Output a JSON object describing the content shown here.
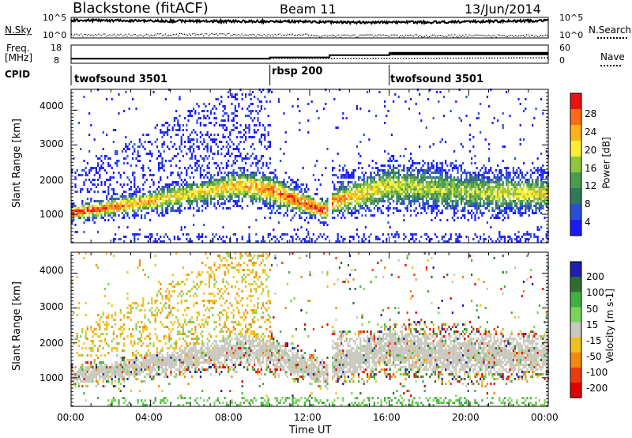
{
  "header": {
    "station": "Blackstone (fitACF)",
    "beam": "Beam 11",
    "date": "13/Jun/2014"
  },
  "panel_labels": {
    "nsky": "N.Sky",
    "nsearch": "N.Search",
    "freq_line1": "Freq.",
    "freq_line2": "[MHz]",
    "nave": "Nave",
    "cpid": "CPID"
  },
  "chart_data": [
    {
      "type": "line",
      "name": "noise",
      "series": [
        {
          "name": "N.Sky",
          "x": [
            "00:00",
            "02:00",
            "04:00",
            "06:00",
            "08:00",
            "10:00",
            "12:00",
            "14:00",
            "16:00",
            "18:00",
            "20:00",
            "22:00",
            "24:00"
          ],
          "values": [
            20000,
            18000,
            14000,
            12000,
            11000,
            10500,
            9000,
            6000,
            6500,
            7000,
            9000,
            12000,
            16000
          ]
        },
        {
          "name": "N.Search",
          "x": [
            "00:00",
            "02:00",
            "04:00",
            "06:00",
            "08:00",
            "10:00",
            "12:00",
            "14:00",
            "16:00",
            "18:00",
            "20:00",
            "22:00",
            "24:00"
          ],
          "values": [
            3,
            3,
            4,
            4,
            3,
            3,
            2,
            2,
            2,
            2,
            2,
            2,
            2
          ]
        }
      ],
      "left_ticks": [
        "10^5",
        "10^0"
      ],
      "right_ticks": [
        "10^5",
        "10^0"
      ]
    },
    {
      "type": "line",
      "name": "frequency",
      "series": [
        {
          "name": "Freq.",
          "x": [
            "00:00",
            "10:00",
            "10:00",
            "13:00",
            "13:00",
            "16:00",
            "16:00",
            "24:00"
          ],
          "values": [
            10.5,
            10.5,
            11.2,
            11.2,
            12.5,
            12.5,
            13.3,
            13.3
          ]
        },
        {
          "name": "Nave",
          "x": [
            "00:00",
            "16:00",
            "24:00"
          ],
          "values": [
            16,
            16,
            18
          ]
        }
      ],
      "left_ticks": [
        "18",
        "8"
      ],
      "right_ticks": [
        "60",
        "0"
      ]
    },
    {
      "type": "table",
      "name": "cpid",
      "segments": [
        {
          "label": "twofsound 3501",
          "start": "00:00",
          "end": "10:00"
        },
        {
          "label": "rbsp 200",
          "start": "10:00",
          "end": "16:00"
        },
        {
          "label": "twofsound 3501",
          "start": "16:00",
          "end": "24:00"
        }
      ]
    },
    {
      "type": "heatmap",
      "name": "power",
      "ylabel": "Slant Range [km]",
      "yticks": [
        "4000",
        "3000",
        "2000",
        "1000"
      ],
      "ylim": [
        180,
        4600
      ],
      "colorbar": {
        "label": "Power [dB]",
        "ticks": [
          "28",
          "24",
          "20",
          "16",
          "12",
          "8",
          "4"
        ],
        "range": [
          0,
          30
        ],
        "colors": [
          "#1a1aff",
          "#2b4fd6",
          "#2f7a5a",
          "#4a9a50",
          "#8ec63f",
          "#ffee33",
          "#ffb21a",
          "#ff6a14",
          "#ee1111"
        ]
      },
      "echo_band": [
        {
          "t": 0,
          "center": 1000,
          "width": 150,
          "strength": 1.0
        },
        {
          "t": 3,
          "center": 1250,
          "width": 200,
          "strength": 0.75
        },
        {
          "t": 6,
          "center": 1550,
          "width": 250,
          "strength": 0.6
        },
        {
          "t": 8.5,
          "center": 1800,
          "width": 300,
          "strength": 0.7
        },
        {
          "t": 10,
          "center": 1650,
          "width": 300,
          "strength": 0.8
        },
        {
          "t": 12.8,
          "center": 1050,
          "width": 200,
          "strength": 0.9
        },
        {
          "t": 13,
          "center": 1300,
          "width": 250,
          "strength": 0.8
        },
        {
          "t": 16,
          "center": 1800,
          "width": 400,
          "strength": 0.55
        },
        {
          "t": 20,
          "center": 1600,
          "width": 400,
          "strength": 0.5
        },
        {
          "t": 24,
          "center": 1550,
          "width": 300,
          "strength": 0.65
        }
      ]
    },
    {
      "type": "heatmap",
      "name": "velocity",
      "xlabel": "Time UT",
      "ylabel": "Slant Range [km]",
      "xticks": [
        "00:00",
        "04:00",
        "08:00",
        "12:00",
        "16:00",
        "20:00",
        "00:00"
      ],
      "yticks": [
        "4000",
        "3000",
        "2000",
        "1000"
      ],
      "ylim": [
        180,
        4600
      ],
      "colorbar": {
        "label": "Velocity [m s-1]",
        "ticks": [
          "200",
          "100",
          "50",
          "15",
          "-15",
          "-50",
          "-100",
          "-200"
        ],
        "range": [
          -250,
          250
        ],
        "colors": [
          "#1f1fb0",
          "#2f6e2f",
          "#40b040",
          "#7ad35a",
          "#c8c8be",
          "#f0c020",
          "#f08a10",
          "#ee3a10",
          "#e00000"
        ]
      }
    }
  ]
}
